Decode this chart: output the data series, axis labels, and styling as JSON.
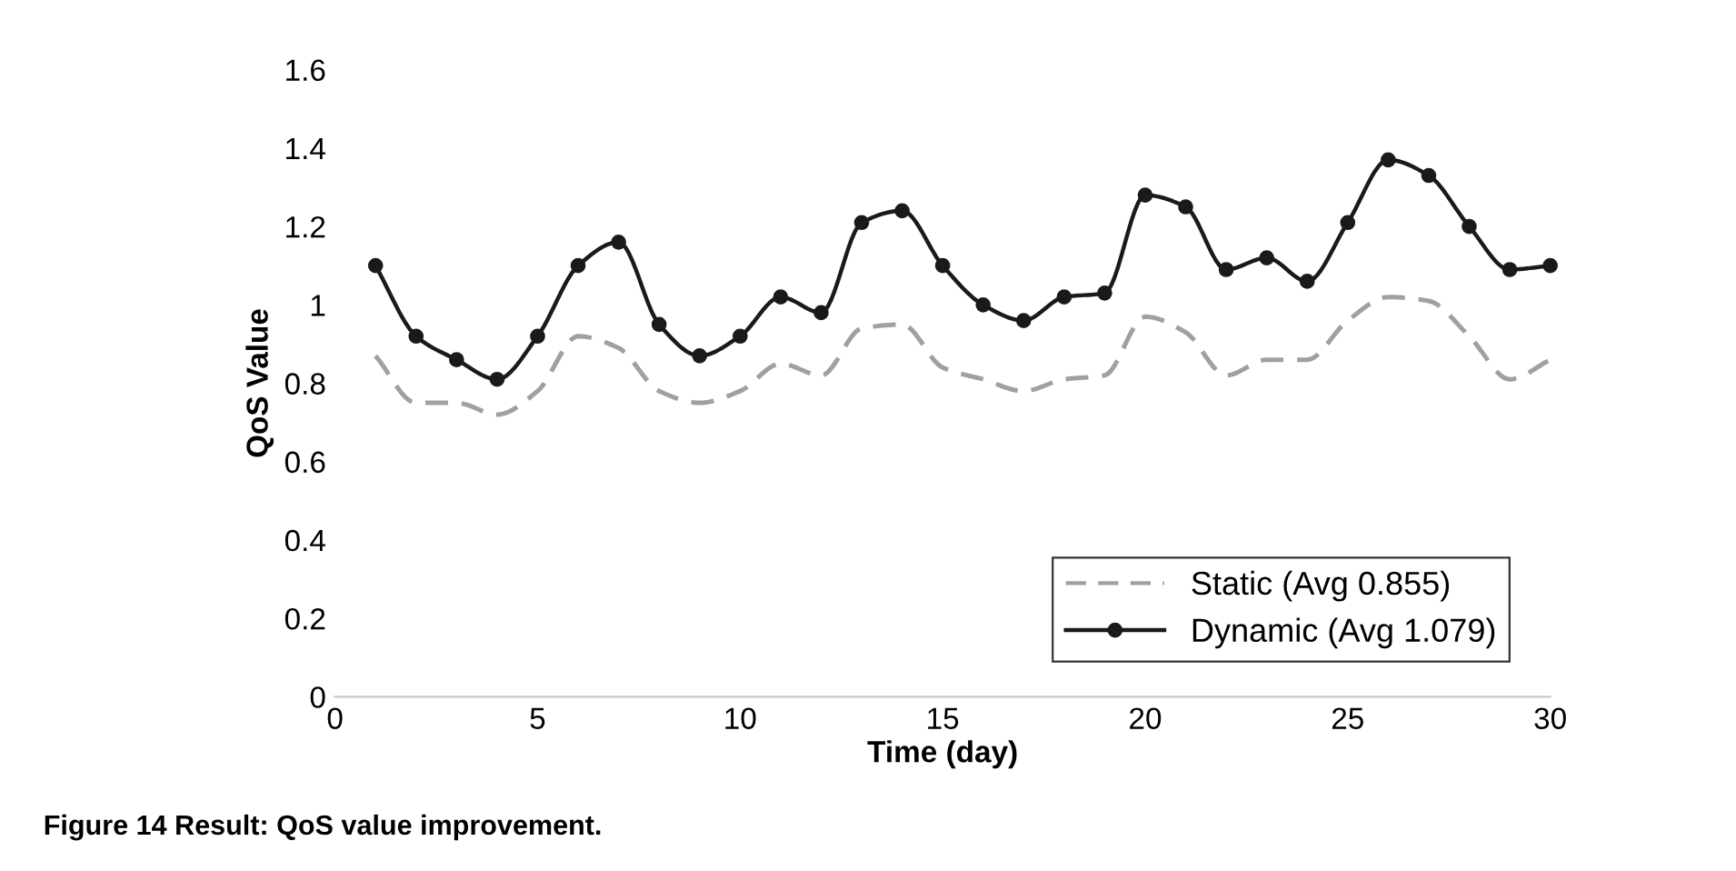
{
  "chart_data": {
    "type": "line",
    "xlabel": "Time (day)",
    "ylabel": "QoS Value",
    "x": [
      1,
      2,
      3,
      4,
      5,
      6,
      7,
      8,
      9,
      10,
      11,
      12,
      13,
      14,
      15,
      16,
      17,
      18,
      19,
      20,
      21,
      22,
      23,
      24,
      25,
      26,
      27,
      28,
      29,
      30
    ],
    "series": [
      {
        "name": "Static (Avg 0.855)",
        "color": "#a0a0a0",
        "line_style": "dashed",
        "marker": "none",
        "values": [
          0.87,
          0.75,
          0.75,
          0.72,
          0.78,
          0.92,
          0.89,
          0.78,
          0.75,
          0.78,
          0.85,
          0.82,
          0.94,
          0.95,
          0.84,
          0.81,
          0.78,
          0.81,
          0.82,
          0.97,
          0.93,
          0.82,
          0.86,
          0.86,
          0.96,
          1.02,
          1.01,
          0.92,
          0.81,
          0.86
        ]
      },
      {
        "name": "Dynamic (Avg 1.079)",
        "color": "#1a1a1a",
        "line_style": "solid",
        "marker": "circle",
        "values": [
          1.1,
          0.92,
          0.86,
          0.81,
          0.92,
          1.1,
          1.16,
          0.95,
          0.87,
          0.92,
          1.02,
          0.98,
          1.21,
          1.24,
          1.1,
          1.0,
          0.96,
          1.02,
          1.03,
          1.28,
          1.25,
          1.09,
          1.12,
          1.06,
          1.21,
          1.37,
          1.33,
          1.2,
          1.09,
          1.1
        ]
      }
    ],
    "xlim": [
      0,
      30
    ],
    "xticks": [
      0,
      5,
      10,
      15,
      20,
      25,
      30
    ],
    "ylim": [
      0,
      1.6
    ],
    "yticks": [
      0,
      0.2,
      0.4,
      0.6,
      0.8,
      1,
      1.2,
      1.4,
      1.6
    ],
    "grid": false,
    "legend": "bottom right",
    "annotations": [
      "Figure 14 Result: QoS value improvement."
    ]
  }
}
